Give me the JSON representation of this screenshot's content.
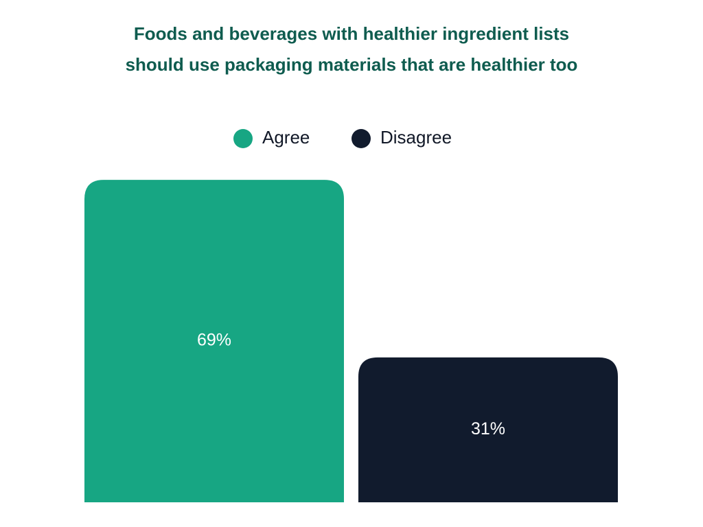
{
  "chart_data": {
    "type": "bar",
    "title": [
      "Foods and beverages with healthier ingredient lists",
      "should use packaging materials that are healthier too"
    ],
    "series": [
      {
        "name": "Agree",
        "color": "#17a683",
        "values": [
          69
        ],
        "value_labels": [
          "69%"
        ]
      },
      {
        "name": "Disagree",
        "color": "#111b2d",
        "values": [
          31
        ],
        "value_labels": [
          "31%"
        ]
      }
    ]
  }
}
